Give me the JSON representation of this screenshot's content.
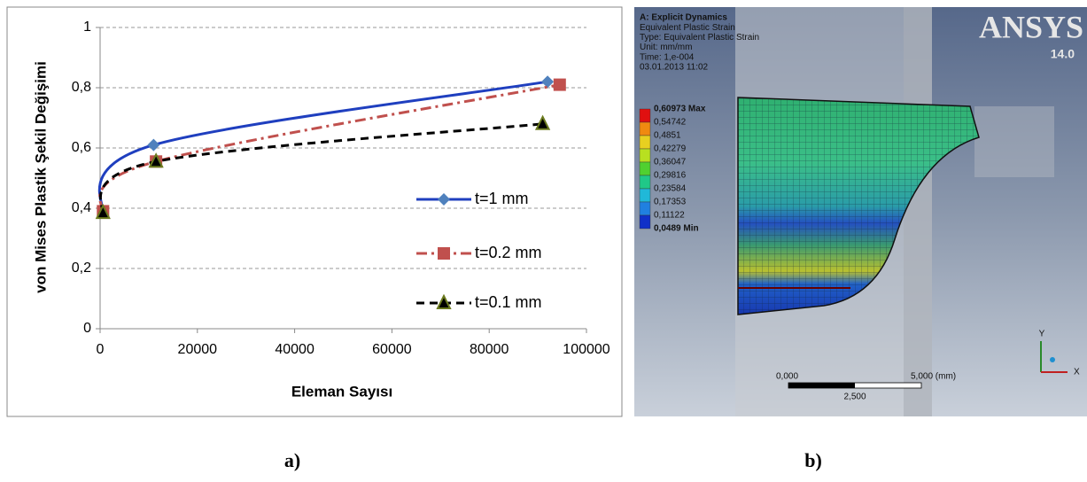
{
  "chart_data": {
    "type": "line",
    "x_label": "Eleman Sayısı",
    "y_label": "von Mises Plastik Şekil Değişimi",
    "xlim": [
      0,
      100000
    ],
    "xticks": [
      0,
      20000,
      40000,
      60000,
      80000,
      100000
    ],
    "ylim": [
      0,
      1
    ],
    "yticks": [
      0,
      {
        "value": 0.2,
        "label": "0,2"
      },
      {
        "value": 0.4,
        "label": "0,4"
      },
      {
        "value": 0.6,
        "label": "0,6"
      },
      {
        "value": 0.8,
        "label": "0,8"
      },
      1
    ],
    "grid": true,
    "legend": "right",
    "series": [
      {
        "name": "t=1 mm",
        "color": "#1f3fbf",
        "marker": "diamond",
        "marker_color": "#4f81bd",
        "dash": "solid",
        "x": [
          600,
          11000,
          92000
        ],
        "values": [
          0.39,
          0.61,
          0.82
        ]
      },
      {
        "name": "t=0.2 mm",
        "color": "#c0504d",
        "marker": "square",
        "marker_color": "#c0504d",
        "dash": "dashdot",
        "x": [
          600,
          11500,
          94500
        ],
        "values": [
          0.39,
          0.555,
          0.81
        ]
      },
      {
        "name": "t=0.1 mm",
        "color": "#000000",
        "marker": "triangle",
        "marker_color": "#6b7a1e",
        "dash": "dash",
        "x": [
          600,
          11500,
          91000
        ],
        "values": [
          0.385,
          0.555,
          0.68
        ]
      }
    ]
  },
  "panels": {
    "a": "a)",
    "b": "b)"
  },
  "simulation": {
    "header": [
      "A: Explicit Dynamics",
      "Equivalent Plastic Strain",
      "Type: Equivalent Plastic Strain",
      "Unit: mm/mm",
      "Time: 1,e-004",
      "03.01.2013 11:02"
    ],
    "legend": [
      "0,60973 Max",
      "0,54742",
      "0,4851",
      "0,42279",
      "0,36047",
      "0,29816",
      "0,23584",
      "0,17353",
      "0,11122",
      "0,0489 Min"
    ],
    "logo": "ANSYS",
    "version": "14.0",
    "scale": [
      "0,000",
      "5,000 (mm)",
      "2,500"
    ],
    "axes": [
      "Y",
      "X"
    ]
  }
}
